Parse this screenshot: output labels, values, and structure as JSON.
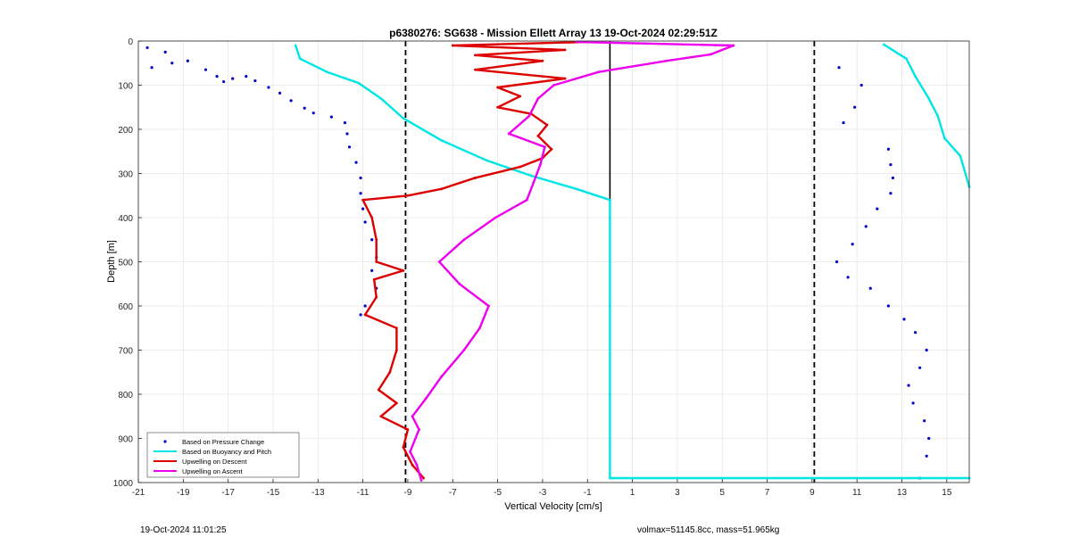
{
  "chart_data": {
    "type": "scatter",
    "title": "p6380276: SG638 - Mission Ellett Array 13 19-Oct-2024 02:29:51Z",
    "xlabel": "Vertical Velocity [cm/s]",
    "ylabel": "Depth [m]",
    "xlim": [
      -21,
      16
    ],
    "ylim": [
      0,
      1000
    ],
    "y_reversed": true,
    "grid": true,
    "xticks": [
      -21,
      -19,
      -17,
      -15,
      -13,
      -11,
      -9,
      -7,
      -5,
      -3,
      -1,
      1,
      3,
      5,
      7,
      9,
      11,
      13,
      15
    ],
    "yticks": [
      0,
      100,
      200,
      300,
      400,
      500,
      600,
      700,
      800,
      900,
      1000
    ],
    "reference_lines": [
      {
        "x": -9.1,
        "style": "dashed"
      },
      {
        "x": 9.1,
        "style": "dashed"
      },
      {
        "x": 0,
        "style": "solid",
        "y_range": [
          0,
          360
        ]
      }
    ],
    "legend_position": "bottom-left",
    "series": [
      {
        "name": "Based on Pressure Change",
        "kind": "markers",
        "color": "#0000cc",
        "descent": [
          [
            -20.6,
            15
          ],
          [
            -19.8,
            25
          ],
          [
            -20.4,
            60
          ],
          [
            -19.5,
            50
          ],
          [
            -18.8,
            45
          ],
          [
            -18,
            65
          ],
          [
            -17.5,
            80
          ],
          [
            -17.2,
            92
          ],
          [
            -16.8,
            85
          ],
          [
            -16.2,
            80
          ],
          [
            -15.8,
            90
          ],
          [
            -15.2,
            105
          ],
          [
            -14.7,
            118
          ],
          [
            -14.2,
            135
          ],
          [
            -13.6,
            152
          ],
          [
            -13.2,
            163
          ],
          [
            -12.4,
            172
          ],
          [
            -11.8,
            185
          ],
          [
            -11.7,
            210
          ],
          [
            -11.6,
            240
          ],
          [
            -11.3,
            275
          ],
          [
            -11.1,
            310
          ],
          [
            -11.1,
            345
          ],
          [
            -11.0,
            380
          ],
          [
            -10.9,
            410
          ],
          [
            -10.6,
            450
          ],
          [
            -10.4,
            490
          ],
          [
            -10.6,
            520
          ],
          [
            -10.4,
            560
          ],
          [
            -10.9,
            600
          ],
          [
            -11.1,
            620
          ]
        ],
        "ascent": [
          [
            10.2,
            60
          ],
          [
            11.2,
            100
          ],
          [
            10.9,
            150
          ],
          [
            10.4,
            185
          ],
          [
            12.4,
            245
          ],
          [
            12.5,
            280
          ],
          [
            12.6,
            310
          ],
          [
            12.5,
            345
          ],
          [
            11.9,
            380
          ],
          [
            11.4,
            420
          ],
          [
            10.8,
            460
          ],
          [
            10.1,
            500
          ],
          [
            10.6,
            535
          ],
          [
            11.6,
            560
          ],
          [
            12.4,
            600
          ],
          [
            13.1,
            630
          ],
          [
            13.6,
            660
          ],
          [
            14.1,
            700
          ],
          [
            13.8,
            740
          ],
          [
            13.3,
            780
          ],
          [
            13.5,
            820
          ],
          [
            14.0,
            860
          ],
          [
            14.2,
            900
          ],
          [
            14.1,
            940
          ],
          [
            13.8,
            990
          ]
        ]
      },
      {
        "name": "Based on Buoyancy and Pitch",
        "kind": "line",
        "color": "#00e5e5",
        "descent": [
          [
            -14,
            10
          ],
          [
            -13.8,
            40
          ],
          [
            -12.6,
            70
          ],
          [
            -11.2,
            95
          ],
          [
            -10.2,
            130
          ],
          [
            -9.2,
            175
          ],
          [
            -7.5,
            225
          ],
          [
            -5.5,
            270
          ],
          [
            -3.5,
            305
          ],
          [
            -1.5,
            335
          ],
          [
            0,
            360
          ],
          [
            0,
            400
          ],
          [
            0,
            600
          ],
          [
            0,
            800
          ],
          [
            0,
            990
          ],
          [
            16,
            990
          ]
        ],
        "ascent": [
          [
            12.2,
            8
          ],
          [
            13.2,
            40
          ],
          [
            13.6,
            80
          ],
          [
            14.2,
            130
          ],
          [
            14.6,
            170
          ],
          [
            14.9,
            220
          ],
          [
            15.6,
            260
          ],
          [
            16,
            330
          ]
        ]
      },
      {
        "name": "Upwelling on Descent",
        "kind": "line",
        "color": "#dd0000",
        "points": [
          [
            -1,
            2
          ],
          [
            -7,
            10
          ],
          [
            -2,
            20
          ],
          [
            -6,
            32
          ],
          [
            -3,
            45
          ],
          [
            -6,
            65
          ],
          [
            -2,
            85
          ],
          [
            -5,
            105
          ],
          [
            -4,
            125
          ],
          [
            -5,
            150
          ],
          [
            -3.5,
            165
          ],
          [
            -2.8,
            190
          ],
          [
            -3.2,
            215
          ],
          [
            -2.6,
            245
          ],
          [
            -3,
            265
          ],
          [
            -4,
            285
          ],
          [
            -6,
            310
          ],
          [
            -7.5,
            335
          ],
          [
            -9,
            350
          ],
          [
            -11,
            360
          ],
          [
            -10.6,
            400
          ],
          [
            -10.4,
            450
          ],
          [
            -10.4,
            500
          ],
          [
            -9.2,
            520
          ],
          [
            -10.5,
            540
          ],
          [
            -10.4,
            580
          ],
          [
            -10.9,
            620
          ],
          [
            -9.5,
            650
          ],
          [
            -9.5,
            700
          ],
          [
            -9.8,
            750
          ],
          [
            -10.3,
            790
          ],
          [
            -9.5,
            820
          ],
          [
            -10.2,
            850
          ],
          [
            -9.0,
            880
          ],
          [
            -9.2,
            920
          ],
          [
            -8.8,
            960
          ],
          [
            -8.3,
            990
          ]
        ]
      },
      {
        "name": "Upwelling on Ascent",
        "kind": "line",
        "color": "#ee00ee",
        "points": [
          [
            -8.4,
            995
          ],
          [
            -8.6,
            960
          ],
          [
            -8.9,
            930
          ],
          [
            -8.5,
            880
          ],
          [
            -8.8,
            850
          ],
          [
            -8.2,
            810
          ],
          [
            -7.5,
            760
          ],
          [
            -6.5,
            700
          ],
          [
            -5.8,
            650
          ],
          [
            -5.4,
            600
          ],
          [
            -6.7,
            550
          ],
          [
            -7.6,
            500
          ],
          [
            -6.5,
            450
          ],
          [
            -5.1,
            400
          ],
          [
            -3.7,
            360
          ],
          [
            -3.4,
            320
          ],
          [
            -3.1,
            280
          ],
          [
            -2.9,
            240
          ],
          [
            -4.5,
            210
          ],
          [
            -3.6,
            170
          ],
          [
            -3.2,
            130
          ],
          [
            -2.5,
            100
          ],
          [
            -0.5,
            70
          ],
          [
            2.5,
            45
          ],
          [
            4.5,
            30
          ],
          [
            5.5,
            10
          ],
          [
            -1.5,
            2
          ]
        ]
      }
    ]
  },
  "footer": {
    "left": "19-Oct-2024 11:01:25",
    "right": "volmax=51145.8cc, mass=51.965kg"
  }
}
